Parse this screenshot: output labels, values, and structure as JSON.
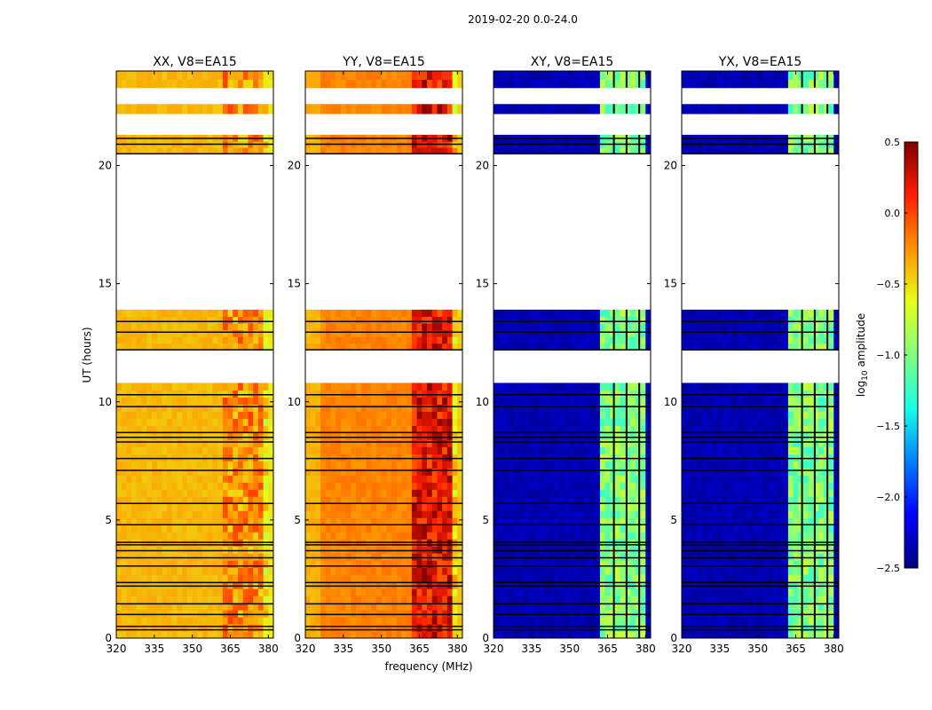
{
  "chart_data": {
    "type": "heatmap",
    "suptitle": "2019-02-20 0.0-24.0",
    "xlabel": "frequency (MHz)",
    "ylabel": "UT (hours)",
    "xlim": [
      320,
      382
    ],
    "ylim": [
      0,
      24
    ],
    "xticks": [
      "320",
      "335",
      "350",
      "365",
      "380"
    ],
    "yticks": [
      "0",
      "5",
      "10",
      "15",
      "20"
    ],
    "colorbar": {
      "label": "log",
      "label_sub": "10",
      "label_suffix": " amplitude",
      "range": [
        -2.5,
        0.5
      ],
      "ticks": [
        "0.5",
        "0.0",
        "−0.5",
        "−1.0",
        "−1.5",
        "−2.0",
        "−2.5"
      ],
      "colors": [
        "#00007f",
        "#0000ff",
        "#007fff",
        "#19ffe6",
        "#7fff7f",
        "#e6ff19",
        "#ff9400",
        "#ff1e00",
        "#7f0000"
      ]
    },
    "data_time_ranges_hours": [
      [
        0.0,
        10.8
      ],
      [
        12.2,
        13.9
      ],
      [
        20.5,
        21.3
      ],
      [
        22.2,
        22.6
      ],
      [
        23.3,
        24.0
      ]
    ],
    "flag_lines_hours": [
      0.35,
      0.5,
      1.0,
      1.45,
      2.2,
      2.35,
      3.05,
      3.4,
      3.7,
      3.95,
      4.05,
      4.8,
      5.7,
      7.1,
      7.6,
      8.3,
      8.5,
      8.7,
      9.8,
      10.3,
      12.2,
      12.95,
      13.4,
      20.5,
      20.9,
      21.15
    ],
    "panels": [
      {
        "title": "XX, V8=EA15",
        "base_log_amp": -0.38,
        "rfi_log_amp": -0.25,
        "edge_log_amp": -0.55,
        "edge_side": "right"
      },
      {
        "title": "YY, V8=EA15",
        "base_log_amp": -0.2,
        "rfi_log_amp": 0.2,
        "edge_log_amp": -0.45,
        "edge_side": "both"
      },
      {
        "title": "XY, V8=EA15",
        "base_log_amp": -2.35,
        "rfi_log_amp": -1.0,
        "edge_log_amp": -2.35,
        "edge_side": "none"
      },
      {
        "title": "YX, V8=EA15",
        "base_log_amp": -2.35,
        "rfi_log_amp": -1.0,
        "edge_log_amp": -2.35,
        "edge_side": "none"
      }
    ],
    "rfi_band_mhz": [
      363,
      379
    ]
  }
}
